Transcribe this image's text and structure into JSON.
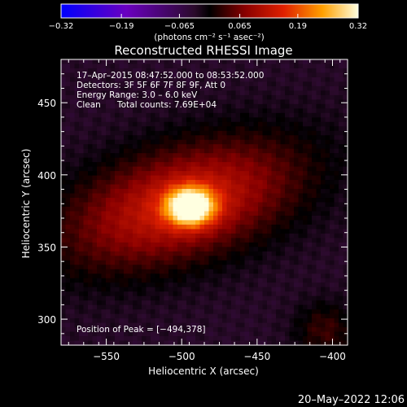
{
  "chart_data": {
    "type": "heatmap",
    "title": "Reconstructed RHESSI Image",
    "xlabel": "Heliocentric X (arcsec)",
    "ylabel": "Heliocentric Y (arcsec)",
    "xlim": [
      -580,
      -390
    ],
    "ylim": [
      282,
      480
    ],
    "x_ticks": [
      -550,
      -500,
      -450,
      -400
    ],
    "x_tick_labels": [
      "−550",
      "−500",
      "−450",
      "−400"
    ],
    "y_ticks": [
      300,
      350,
      400,
      450
    ],
    "y_tick_labels": [
      "300",
      "350",
      "400",
      "450"
    ],
    "colorbar": {
      "range": [
        -0.32,
        0.32
      ],
      "ticks": [
        -0.32,
        -0.19,
        -0.065,
        0.065,
        0.19,
        0.32
      ],
      "tick_labels": [
        "−0.32",
        "−0.19",
        "−0.065",
        "0.065",
        "0.19",
        "0.32"
      ],
      "units_label": "(photons cm⁻² s⁻¹ asec⁻²)"
    },
    "annotations": {
      "time_range": "17–Apr–2015 08:47:52.000 to 08:53:52.000",
      "detectors": "Detectors: 3F 5F 6F 7F 8F 9F, Att 0",
      "energy": "Energy Range: 3.0 – 6.0 keV",
      "method": "Clean",
      "counts": "Total counts: 7.69E+04",
      "peak": "Position of Peak = [−494,378]"
    },
    "source": {
      "peak_x": -494,
      "peak_y": 378,
      "core_sigma": [
        11,
        9
      ],
      "core_amp": 0.32,
      "halo_center": [
        -500,
        380
      ],
      "halo_sigma": [
        55,
        26
      ],
      "halo_rotation_deg": -18,
      "halo_amp": 0.17
    },
    "background_value": -0.03,
    "grid": false
  },
  "footer": {
    "timestamp": "20–May–2022 12:06"
  }
}
